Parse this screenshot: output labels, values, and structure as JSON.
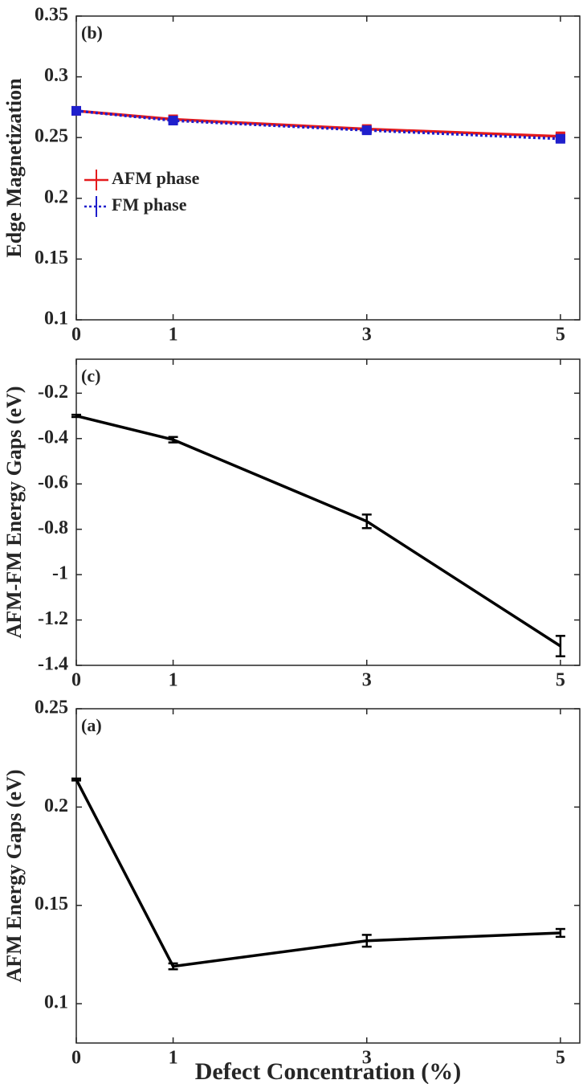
{
  "chart_data": [
    {
      "type": "line",
      "annotation": "(b)",
      "ylabel": "Edge Magnetization",
      "x": [
        0,
        1,
        3,
        5
      ],
      "xlim": [
        0,
        5.2
      ],
      "xticks": [
        0,
        1,
        3,
        5
      ],
      "ylim": [
        0.1,
        0.35
      ],
      "yticks": [
        0.1,
        0.15,
        0.2,
        0.25,
        0.3,
        0.35
      ],
      "legend": "west",
      "series": [
        {
          "name": "AFM phase",
          "color": "#e41a1c",
          "linestyle": "solid",
          "marker": "square",
          "values": [
            0.272,
            0.265,
            0.257,
            0.251
          ],
          "errors": [
            0.002,
            0.002,
            0.002,
            0.002
          ]
        },
        {
          "name": "FM phase",
          "color": "#1f1fcc",
          "linestyle": "dotted",
          "marker": "square",
          "values": [
            0.272,
            0.264,
            0.256,
            0.249
          ],
          "errors": [
            0.002,
            0.002,
            0.002,
            0.002
          ]
        }
      ]
    },
    {
      "type": "line",
      "annotation": "(c)",
      "ylabel": "AFM-FM Energy Gaps (eV)",
      "x": [
        0,
        1,
        3,
        5
      ],
      "xlim": [
        0,
        5.2
      ],
      "xticks": [
        0,
        1,
        3,
        5
      ],
      "ylim": [
        -1.4,
        -0.05
      ],
      "yticks": [
        -1.4,
        -1.2,
        -1,
        -0.8,
        -0.6,
        -0.4,
        -0.2
      ],
      "series": [
        {
          "color": "#000000",
          "linestyle": "solid",
          "values": [
            -0.3,
            -0.405,
            -0.765,
            -1.315
          ],
          "errors": [
            0.005,
            0.012,
            0.03,
            0.045
          ]
        }
      ]
    },
    {
      "type": "line",
      "annotation": "(a)",
      "ylabel": "AFM Energy Gaps (eV)",
      "xlabel": "Defect Concentration (%)",
      "x": [
        0,
        1,
        3,
        5
      ],
      "xlim": [
        0,
        5.2
      ],
      "xticks": [
        0,
        1,
        3,
        5
      ],
      "ylim": [
        0.08,
        0.25
      ],
      "yticks": [
        0.1,
        0.15,
        0.2,
        0.25
      ],
      "series": [
        {
          "color": "#000000",
          "linestyle": "solid",
          "values": [
            0.214,
            0.119,
            0.132,
            0.136
          ],
          "errors": [
            0.0005,
            0.0015,
            0.003,
            0.002
          ]
        }
      ]
    }
  ]
}
